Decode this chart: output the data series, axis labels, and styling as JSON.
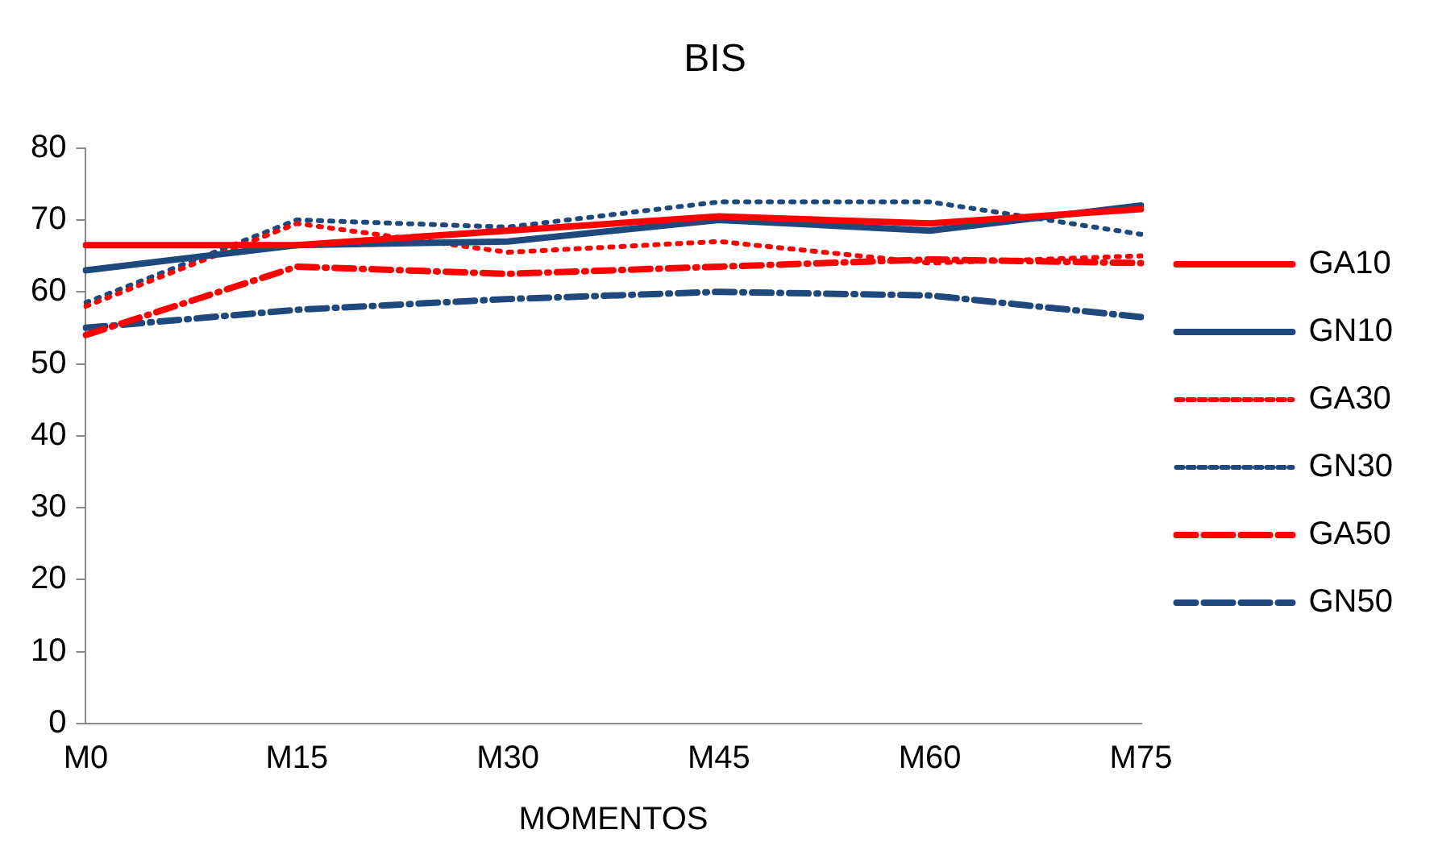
{
  "chart_data": {
    "type": "line",
    "title": "BIS",
    "xlabel": "MOMENTOS",
    "categories": [
      "M0",
      "M15",
      "M30",
      "M45",
      "M60",
      "M75"
    ],
    "series": [
      {
        "name": "GA10",
        "color": "#ff0000",
        "line_style": "solid",
        "values": [
          66.5,
          66.5,
          68.5,
          70.5,
          69.5,
          71.5
        ]
      },
      {
        "name": "GN10",
        "color": "#1f497d",
        "line_style": "solid",
        "values": [
          63,
          66.5,
          67,
          70,
          68.5,
          72
        ]
      },
      {
        "name": "GA30",
        "color": "#ff0000",
        "line_style": "dotted",
        "values": [
          58,
          69.5,
          65.5,
          67,
          64,
          65
        ]
      },
      {
        "name": "GN30",
        "color": "#1f497d",
        "line_style": "dotted",
        "values": [
          58.5,
          70,
          69,
          72.5,
          72.5,
          68
        ]
      },
      {
        "name": "GA50",
        "color": "#ff0000",
        "line_style": "dashdot",
        "values": [
          54,
          63.5,
          62.5,
          63.5,
          64.5,
          64
        ]
      },
      {
        "name": "GN50",
        "color": "#1f497d",
        "line_style": "dashdot",
        "values": [
          55,
          57.5,
          59,
          60,
          59.5,
          56.5
        ]
      }
    ],
    "ylim": [
      0,
      80
    ],
    "yticks": [
      0,
      10,
      20,
      30,
      40,
      50,
      60,
      70,
      80
    ],
    "grid": false,
    "legend": "right",
    "marker": "none"
  }
}
